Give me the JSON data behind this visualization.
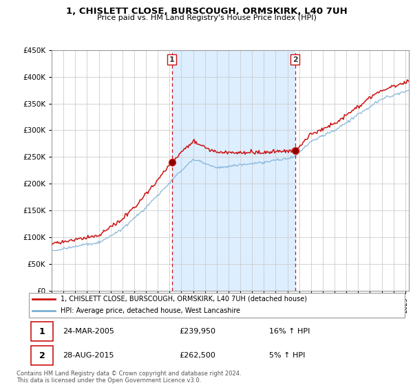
{
  "title_line1": "1, CHISLETT CLOSE, BURSCOUGH, ORMSKIRK, L40 7UH",
  "title_line2": "Price paid vs. HM Land Registry's House Price Index (HPI)",
  "legend_line1": "1, CHISLETT CLOSE, BURSCOUGH, ORMSKIRK, L40 7UH (detached house)",
  "legend_line2": "HPI: Average price, detached house, West Lancashire",
  "annotation1_date": "24-MAR-2005",
  "annotation1_price": "£239,950",
  "annotation1_hpi": "16% ↑ HPI",
  "annotation1_year": 2005.2,
  "annotation1_value": 239950,
  "annotation2_date": "28-AUG-2015",
  "annotation2_price": "£262,500",
  "annotation2_hpi": "5% ↑ HPI",
  "annotation2_year": 2015.65,
  "annotation2_value": 262500,
  "footer": "Contains HM Land Registry data © Crown copyright and database right 2024.\nThis data is licensed under the Open Government Licence v3.0.",
  "hpi_color": "#7bafd4",
  "sale_color": "#cc1111",
  "shade_color": "#ddeeff",
  "plot_bg_color": "#ffffff",
  "grid_color": "#cccccc",
  "vline_color": "#cc1111",
  "ylim": [
    0,
    450000
  ],
  "xlim_start": 1995,
  "xlim_end": 2025.3
}
